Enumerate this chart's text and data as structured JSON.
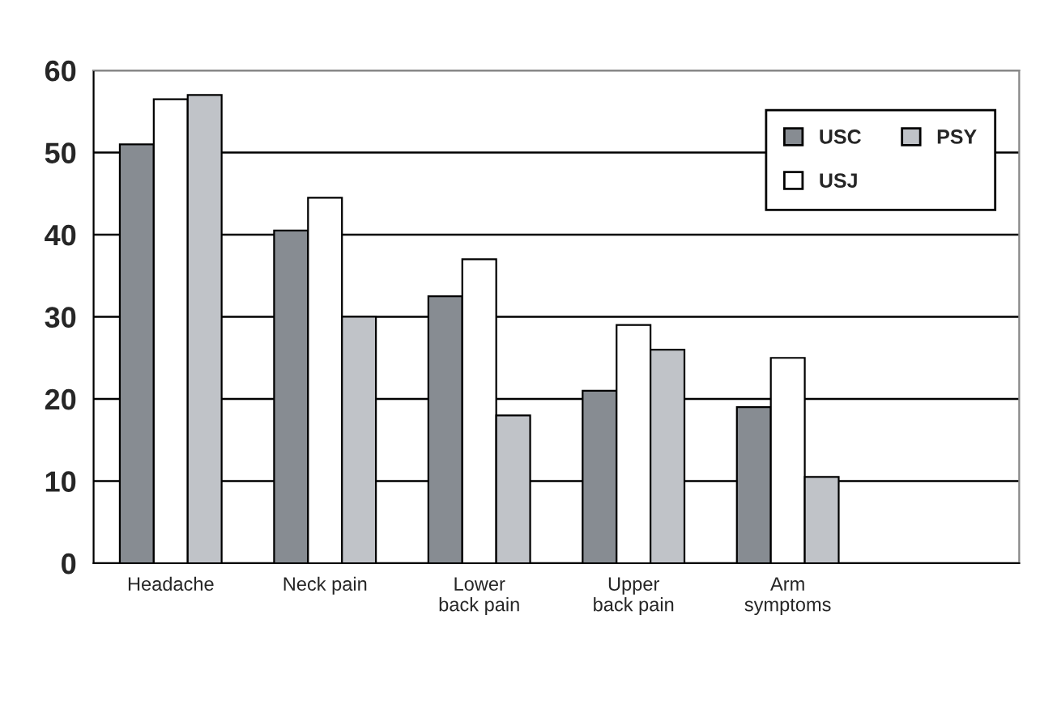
{
  "chart_data": {
    "type": "bar",
    "categories": [
      "Headache",
      "Neck pain",
      "Lower\nback pain",
      "Upper\nback pain",
      "Arm\nsymptoms",
      null
    ],
    "series": [
      {
        "name": "USC",
        "color": "#878c92",
        "values": [
          51,
          40.5,
          32.5,
          21,
          19,
          null
        ]
      },
      {
        "name": "USJ",
        "color": "#ffffff",
        "values": [
          56.5,
          44.5,
          37,
          29,
          25,
          null
        ]
      },
      {
        "name": "PSY",
        "color": "#c0c3c8",
        "values": [
          57,
          30,
          18,
          26,
          10.5,
          null
        ]
      }
    ],
    "ylim": [
      0,
      60
    ],
    "yticks": [
      0,
      10,
      20,
      30,
      40,
      50,
      60
    ],
    "grid": "y",
    "legend": "top right"
  }
}
